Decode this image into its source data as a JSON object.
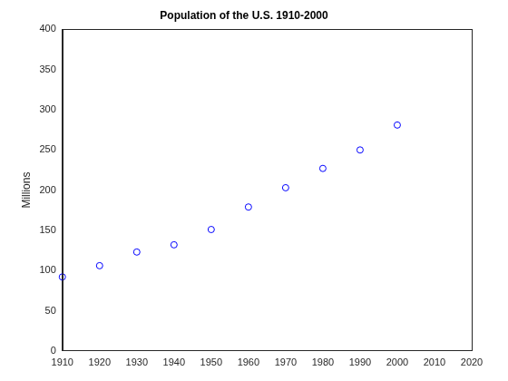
{
  "chart_data": {
    "type": "scatter",
    "title": "Population of the U.S. 1910-2000",
    "y_label": "Millions",
    "x": [
      1910,
      1920,
      1930,
      1940,
      1950,
      1960,
      1970,
      1980,
      1990,
      2000
    ],
    "values": [
      92,
      106,
      123,
      132,
      151,
      179,
      203,
      227,
      250,
      281
    ],
    "color": "#0000ff",
    "marker": "circle",
    "xlim": [
      1910,
      2020
    ],
    "xticks": [
      1910,
      1920,
      1930,
      1940,
      1950,
      1960,
      1970,
      1980,
      1990,
      2000,
      2010,
      2020
    ],
    "ylim": [
      0,
      400
    ],
    "yticks": [
      0,
      50,
      100,
      150,
      200,
      250,
      300,
      350,
      400
    ],
    "grid": false
  }
}
